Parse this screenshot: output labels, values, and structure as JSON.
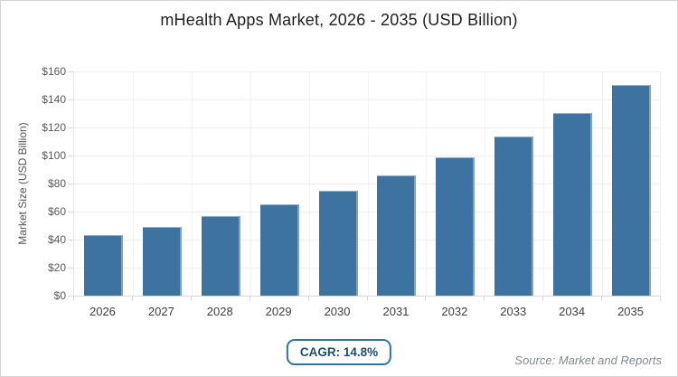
{
  "chart_data": {
    "type": "bar",
    "title": "mHealth Apps Market, 2026 - 2035 (USD Billion)",
    "categories": [
      "2026",
      "2027",
      "2028",
      "2029",
      "2030",
      "2031",
      "2032",
      "2033",
      "2034",
      "2035"
    ],
    "values": [
      43,
      49,
      57,
      65,
      75,
      86,
      99,
      113.5,
      130,
      150
    ],
    "xlabel": "",
    "ylabel": "Market Size (USD Billion)",
    "ylim": [
      0,
      160
    ],
    "ytick_step": 20,
    "ytick_prefix": "$",
    "grid": "on",
    "legend": "none",
    "annotations": {
      "cagr_badge": "CAGR: 14.8%",
      "source": "Source: Market and Reports"
    },
    "colors": {
      "bar": "#3c73a0",
      "grid_horizontal": "#efefef",
      "grid_vertical": "#f2f2f2",
      "axis_tick": "#d8d8d8",
      "tick_text": "#595959",
      "category_text": "#3f3f3f",
      "title_text": "#1f1f1f",
      "badge_border": "#2f74a6",
      "badge_text": "#1d4e73",
      "source_text": "#85898c"
    }
  }
}
